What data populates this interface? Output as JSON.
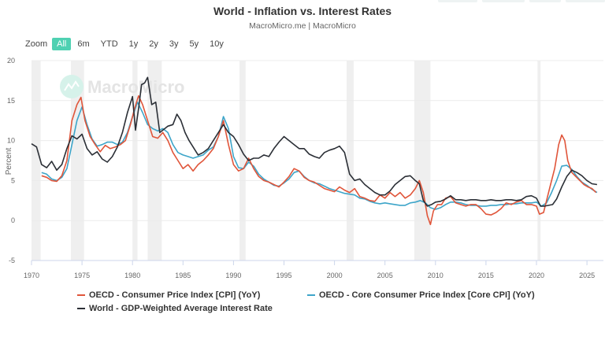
{
  "title": "World - Inflation vs. Interest Rates",
  "subtitle": "MacroMicro.me | MacroMicro",
  "watermark": "MacroMicro",
  "zoom": {
    "label": "Zoom",
    "buttons": [
      "All",
      "6m",
      "YTD",
      "1y",
      "2y",
      "3y",
      "5y",
      "10y"
    ],
    "active": "All"
  },
  "chart_data": {
    "type": "line",
    "title": "World - Inflation vs. Interest Rates",
    "xlabel": "",
    "ylabel": "Percent",
    "xlim": [
      1970,
      2026.3
    ],
    "ylim": [
      -5,
      20
    ],
    "x_ticks": [
      "1970",
      "1975",
      "1980",
      "1985",
      "1990",
      "1995",
      "2000",
      "2005",
      "2010",
      "2015",
      "2020",
      "2025"
    ],
    "y_ticks": [
      "-5",
      "0",
      "5",
      "10",
      "15",
      "20"
    ],
    "grid": true,
    "legend": "bottom",
    "recession_bands": [
      [
        1970.0,
        1970.9
      ],
      [
        1973.9,
        1975.2
      ],
      [
        1980.0,
        1980.5
      ],
      [
        1981.5,
        1982.9
      ],
      [
        1990.6,
        1991.2
      ],
      [
        2001.2,
        2001.9
      ],
      [
        2007.9,
        2009.5
      ],
      [
        2020.1,
        2020.4
      ]
    ],
    "series": [
      {
        "name": "OECD - Consumer Price Index [CPI] (YoY)",
        "color": "#e0553a",
        "x": [
          1971.0,
          1971.5,
          1972.0,
          1972.5,
          1973.0,
          1973.5,
          1974.0,
          1974.5,
          1974.9,
          1975.3,
          1975.8,
          1976.3,
          1976.8,
          1977.3,
          1977.8,
          1978.3,
          1978.8,
          1979.3,
          1979.8,
          1980.2,
          1980.6,
          1981.0,
          1981.5,
          1982.0,
          1982.5,
          1983.0,
          1983.5,
          1984.0,
          1984.5,
          1985.0,
          1985.5,
          1986.0,
          1986.5,
          1987.0,
          1987.5,
          1988.0,
          1988.5,
          1989.0,
          1989.5,
          1990.0,
          1990.5,
          1991.0,
          1991.5,
          1992.0,
          1992.5,
          1993.0,
          1993.5,
          1994.0,
          1994.5,
          1995.0,
          1995.5,
          1996.0,
          1996.5,
          1997.0,
          1997.5,
          1998.0,
          1998.5,
          1999.0,
          1999.5,
          2000.0,
          2000.5,
          2001.0,
          2001.5,
          2002.0,
          2002.5,
          2003.0,
          2003.5,
          2004.0,
          2004.5,
          2005.0,
          2005.5,
          2006.0,
          2006.5,
          2007.0,
          2007.5,
          2008.0,
          2008.4,
          2008.8,
          2009.2,
          2009.5,
          2009.8,
          2010.2,
          2010.6,
          2011.0,
          2011.5,
          2012.0,
          2012.5,
          2013.0,
          2013.5,
          2014.0,
          2014.5,
          2015.0,
          2015.5,
          2016.0,
          2016.5,
          2017.0,
          2017.5,
          2018.0,
          2018.5,
          2019.0,
          2019.5,
          2020.0,
          2020.3,
          2020.7,
          2021.0,
          2021.4,
          2021.8,
          2022.2,
          2022.5,
          2022.8,
          2023.1,
          2023.5,
          2023.9,
          2024.3,
          2024.7,
          2025.1,
          2025.5,
          2025.9
        ],
        "y": [
          5.6,
          5.4,
          5.0,
          4.9,
          5.6,
          7.5,
          12.5,
          14.5,
          15.4,
          12.5,
          10.5,
          9.5,
          8.6,
          9.4,
          9.0,
          9.2,
          9.5,
          10.0,
          12.0,
          14.0,
          15.6,
          14.5,
          12.5,
          10.5,
          10.3,
          11.0,
          10.0,
          8.5,
          7.5,
          6.5,
          7.0,
          6.2,
          7.0,
          7.5,
          8.2,
          9.0,
          10.5,
          12.5,
          9.5,
          7.0,
          6.2,
          6.5,
          7.8,
          6.5,
          5.5,
          5.0,
          4.8,
          4.5,
          4.2,
          4.8,
          5.5,
          6.5,
          6.2,
          5.4,
          5.0,
          4.8,
          4.4,
          4.0,
          3.8,
          3.6,
          4.2,
          3.8,
          3.5,
          4.0,
          3.0,
          2.8,
          2.5,
          2.4,
          3.2,
          2.8,
          3.5,
          3.0,
          3.5,
          2.8,
          3.2,
          4.0,
          5.0,
          3.5,
          0.6,
          -0.5,
          1.2,
          2.0,
          2.0,
          2.8,
          3.0,
          2.2,
          2.0,
          1.8,
          2.0,
          2.0,
          1.5,
          0.8,
          0.7,
          1.0,
          1.5,
          2.2,
          2.0,
          2.3,
          2.5,
          2.0,
          2.0,
          1.8,
          0.8,
          1.0,
          2.5,
          4.5,
          6.5,
          9.5,
          10.7,
          10.0,
          7.5,
          6.0,
          5.5,
          5.0,
          4.5,
          4.2,
          4.0,
          3.5
        ]
      },
      {
        "name": "OECD - Core Consumer Price Index [Core CPI] (YoY)",
        "color": "#3da5c9",
        "x": [
          1971.0,
          1971.5,
          1972.0,
          1972.5,
          1973.0,
          1973.5,
          1974.0,
          1974.5,
          1975.0,
          1975.5,
          1976.0,
          1976.5,
          1977.0,
          1977.5,
          1978.0,
          1978.5,
          1979.0,
          1979.5,
          1980.0,
          1980.5,
          1981.0,
          1981.5,
          1982.0,
          1982.5,
          1983.0,
          1983.5,
          1984.0,
          1984.5,
          1985.0,
          1985.5,
          1986.0,
          1986.5,
          1987.0,
          1987.5,
          1988.0,
          1988.5,
          1989.0,
          1989.5,
          1990.0,
          1990.5,
          1991.0,
          1991.5,
          1992.0,
          1992.5,
          1993.0,
          1993.5,
          1994.0,
          1994.5,
          1995.0,
          1995.5,
          1996.0,
          1996.5,
          1997.0,
          1997.5,
          1998.0,
          1998.5,
          1999.0,
          1999.5,
          2000.0,
          2000.5,
          2001.0,
          2001.5,
          2002.0,
          2002.5,
          2003.0,
          2003.5,
          2004.0,
          2004.5,
          2005.0,
          2005.5,
          2006.0,
          2006.5,
          2007.0,
          2007.5,
          2008.0,
          2008.5,
          2009.0,
          2009.5,
          2010.0,
          2010.5,
          2011.0,
          2011.5,
          2012.0,
          2012.5,
          2013.0,
          2013.5,
          2014.0,
          2014.5,
          2015.0,
          2015.5,
          2016.0,
          2016.5,
          2017.0,
          2017.5,
          2018.0,
          2018.5,
          2019.0,
          2019.5,
          2020.0,
          2020.5,
          2021.0,
          2021.5,
          2022.0,
          2022.5,
          2023.0,
          2023.5,
          2024.0,
          2024.5,
          2025.0,
          2025.5,
          2026.0
        ],
        "y": [
          6.0,
          5.8,
          5.2,
          5.0,
          5.4,
          6.5,
          9.5,
          12.5,
          14.2,
          12.0,
          10.2,
          9.3,
          9.5,
          9.8,
          9.8,
          9.5,
          9.8,
          11.0,
          13.0,
          14.8,
          13.5,
          12.0,
          11.5,
          11.2,
          11.5,
          11.0,
          9.5,
          8.5,
          8.2,
          8.0,
          7.8,
          8.0,
          8.2,
          8.8,
          9.2,
          10.5,
          13.0,
          11.5,
          8.0,
          6.6,
          6.5,
          7.3,
          6.8,
          5.8,
          5.2,
          4.8,
          4.4,
          4.3,
          4.7,
          5.2,
          6.0,
          6.2,
          5.5,
          5.0,
          4.7,
          4.6,
          4.3,
          4.0,
          3.8,
          3.6,
          3.4,
          3.3,
          3.2,
          2.8,
          2.7,
          2.4,
          2.2,
          2.1,
          2.2,
          2.1,
          2.0,
          1.9,
          1.9,
          2.2,
          2.3,
          2.5,
          2.2,
          1.6,
          1.4,
          1.6,
          2.0,
          2.3,
          2.3,
          2.2,
          2.0,
          1.9,
          1.9,
          1.8,
          1.8,
          1.9,
          1.9,
          2.0,
          2.0,
          2.1,
          2.1,
          2.2,
          2.2,
          2.2,
          2.3,
          1.8,
          2.2,
          3.5,
          5.0,
          6.8,
          6.9,
          6.4,
          5.5,
          4.8,
          4.4,
          3.9,
          3.5
        ]
      },
      {
        "name": "World - GDP-Weighted Average Interest Rate",
        "color": "#2b2f36",
        "x": [
          1970.0,
          1970.5,
          1971.0,
          1971.5,
          1972.0,
          1972.5,
          1973.0,
          1973.5,
          1974.0,
          1974.5,
          1975.0,
          1975.5,
          1976.0,
          1976.5,
          1977.0,
          1977.5,
          1978.0,
          1978.5,
          1979.0,
          1979.5,
          1980.0,
          1980.3,
          1980.6,
          1980.9,
          1981.2,
          1981.5,
          1981.9,
          1982.3,
          1982.7,
          1983.0,
          1983.5,
          1984.0,
          1984.4,
          1984.8,
          1985.2,
          1985.6,
          1986.0,
          1986.5,
          1987.0,
          1987.5,
          1988.0,
          1988.5,
          1989.0,
          1989.5,
          1990.0,
          1990.5,
          1991.0,
          1991.5,
          1992.0,
          1992.5,
          1993.0,
          1993.5,
          1994.0,
          1994.5,
          1995.0,
          1995.5,
          1996.0,
          1996.5,
          1997.0,
          1997.5,
          1998.0,
          1998.5,
          1999.0,
          1999.5,
          2000.0,
          2000.5,
          2001.0,
          2001.5,
          2002.0,
          2002.5,
          2003.0,
          2003.5,
          2004.0,
          2004.5,
          2005.0,
          2005.5,
          2006.0,
          2006.5,
          2007.0,
          2007.5,
          2008.0,
          2008.4,
          2008.8,
          2009.2,
          2009.6,
          2010.0,
          2010.5,
          2011.0,
          2011.5,
          2012.0,
          2012.5,
          2013.0,
          2013.5,
          2014.0,
          2014.5,
          2015.0,
          2015.5,
          2016.0,
          2016.5,
          2017.0,
          2017.5,
          2018.0,
          2018.5,
          2019.0,
          2019.5,
          2020.0,
          2020.4,
          2020.8,
          2021.2,
          2021.6,
          2022.0,
          2022.5,
          2023.0,
          2023.5,
          2024.0,
          2024.5,
          2025.0,
          2025.5,
          2026.0
        ],
        "y": [
          9.6,
          9.2,
          7.0,
          6.6,
          7.4,
          6.3,
          7.0,
          9.0,
          10.6,
          10.2,
          10.8,
          9.0,
          8.2,
          8.6,
          7.7,
          7.3,
          8.0,
          9.2,
          11.0,
          13.5,
          15.5,
          11.3,
          14.0,
          17.0,
          17.2,
          17.9,
          14.5,
          14.8,
          11.0,
          11.3,
          11.8,
          12.0,
          13.3,
          12.5,
          11.0,
          10.0,
          9.2,
          8.2,
          8.5,
          9.0,
          10.0,
          11.0,
          12.0,
          11.0,
          10.5,
          9.5,
          8.3,
          7.5,
          7.8,
          7.8,
          8.2,
          8.0,
          9.0,
          9.8,
          10.5,
          10.0,
          9.5,
          9.0,
          9.0,
          8.3,
          8.0,
          7.8,
          8.5,
          8.8,
          9.0,
          9.3,
          8.5,
          5.8,
          5.0,
          5.2,
          4.5,
          4.0,
          3.5,
          3.2,
          3.2,
          3.7,
          4.5,
          5.0,
          5.5,
          5.6,
          5.0,
          4.6,
          2.5,
          1.8,
          2.0,
          2.3,
          2.4,
          2.7,
          3.1,
          2.6,
          2.6,
          2.5,
          2.6,
          2.6,
          2.5,
          2.5,
          2.6,
          2.5,
          2.5,
          2.6,
          2.6,
          2.5,
          2.6,
          3.0,
          3.1,
          2.8,
          1.8,
          1.8,
          1.9,
          2.0,
          2.7,
          4.2,
          5.5,
          6.3,
          6.0,
          5.6,
          5.0,
          4.6,
          4.5
        ]
      }
    ]
  },
  "legend": {
    "items": [
      {
        "label": "OECD - Consumer Price Index [CPI] (YoY)",
        "color": "#e0553a"
      },
      {
        "label": "OECD - Core Consumer Price Index [Core CPI] (YoY)",
        "color": "#3da5c9"
      },
      {
        "label": "World - GDP-Weighted Average Interest Rate",
        "color": "#2b2f36"
      }
    ]
  }
}
